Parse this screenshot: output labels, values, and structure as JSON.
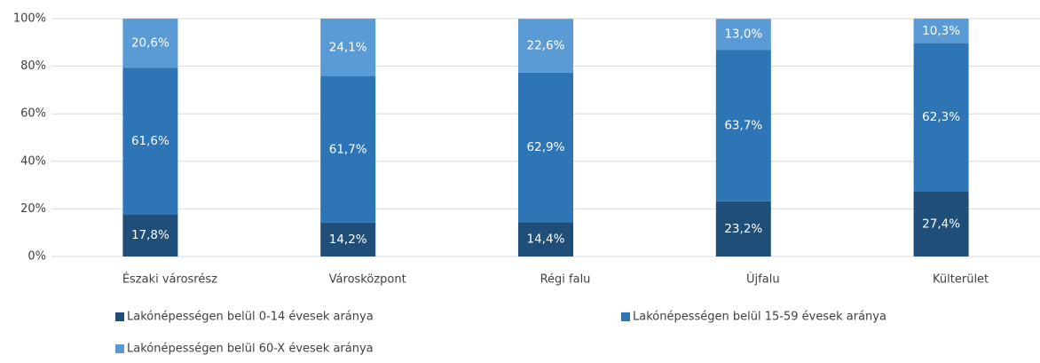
{
  "chart_data": {
    "type": "stacked_bar",
    "categories": [
      "Északi városrész",
      "Városközpont",
      "Régi falu",
      "Újfalu",
      "Külterület"
    ],
    "series": [
      {
        "name": "Lakónépességen belül 0-14 évesek aránya",
        "color": "#1f4e79",
        "values": [
          17.8,
          14.2,
          14.4,
          23.2,
          27.4
        ],
        "value_labels": [
          "17,8%",
          "14,2%",
          "14,4%",
          "23,2%",
          "27,4%"
        ]
      },
      {
        "name": "Lakónépességen belül 15-59 évesek aránya",
        "color": "#2e75b6",
        "values": [
          61.6,
          61.7,
          62.9,
          63.7,
          62.3
        ],
        "value_labels": [
          "61,6%",
          "61,7%",
          "62,9%",
          "63,7%",
          "62,3%"
        ]
      },
      {
        "name": "Lakónépességen belül 60-X évesek aránya",
        "color": "#5b9bd5",
        "values": [
          20.6,
          24.1,
          22.6,
          13.0,
          10.3
        ],
        "value_labels": [
          "20,6%",
          "24,1%",
          "22,6%",
          "13,0%",
          "10,3%"
        ]
      }
    ],
    "ylim": [
      0,
      100
    ],
    "yticks": [
      {
        "value": 0,
        "label": "0%"
      },
      {
        "value": 20,
        "label": "20%"
      },
      {
        "value": 40,
        "label": "40%"
      },
      {
        "value": 60,
        "label": "60%"
      },
      {
        "value": 80,
        "label": "80%"
      },
      {
        "value": 100,
        "label": "100%"
      }
    ],
    "grid": true,
    "legend": "bottom"
  }
}
